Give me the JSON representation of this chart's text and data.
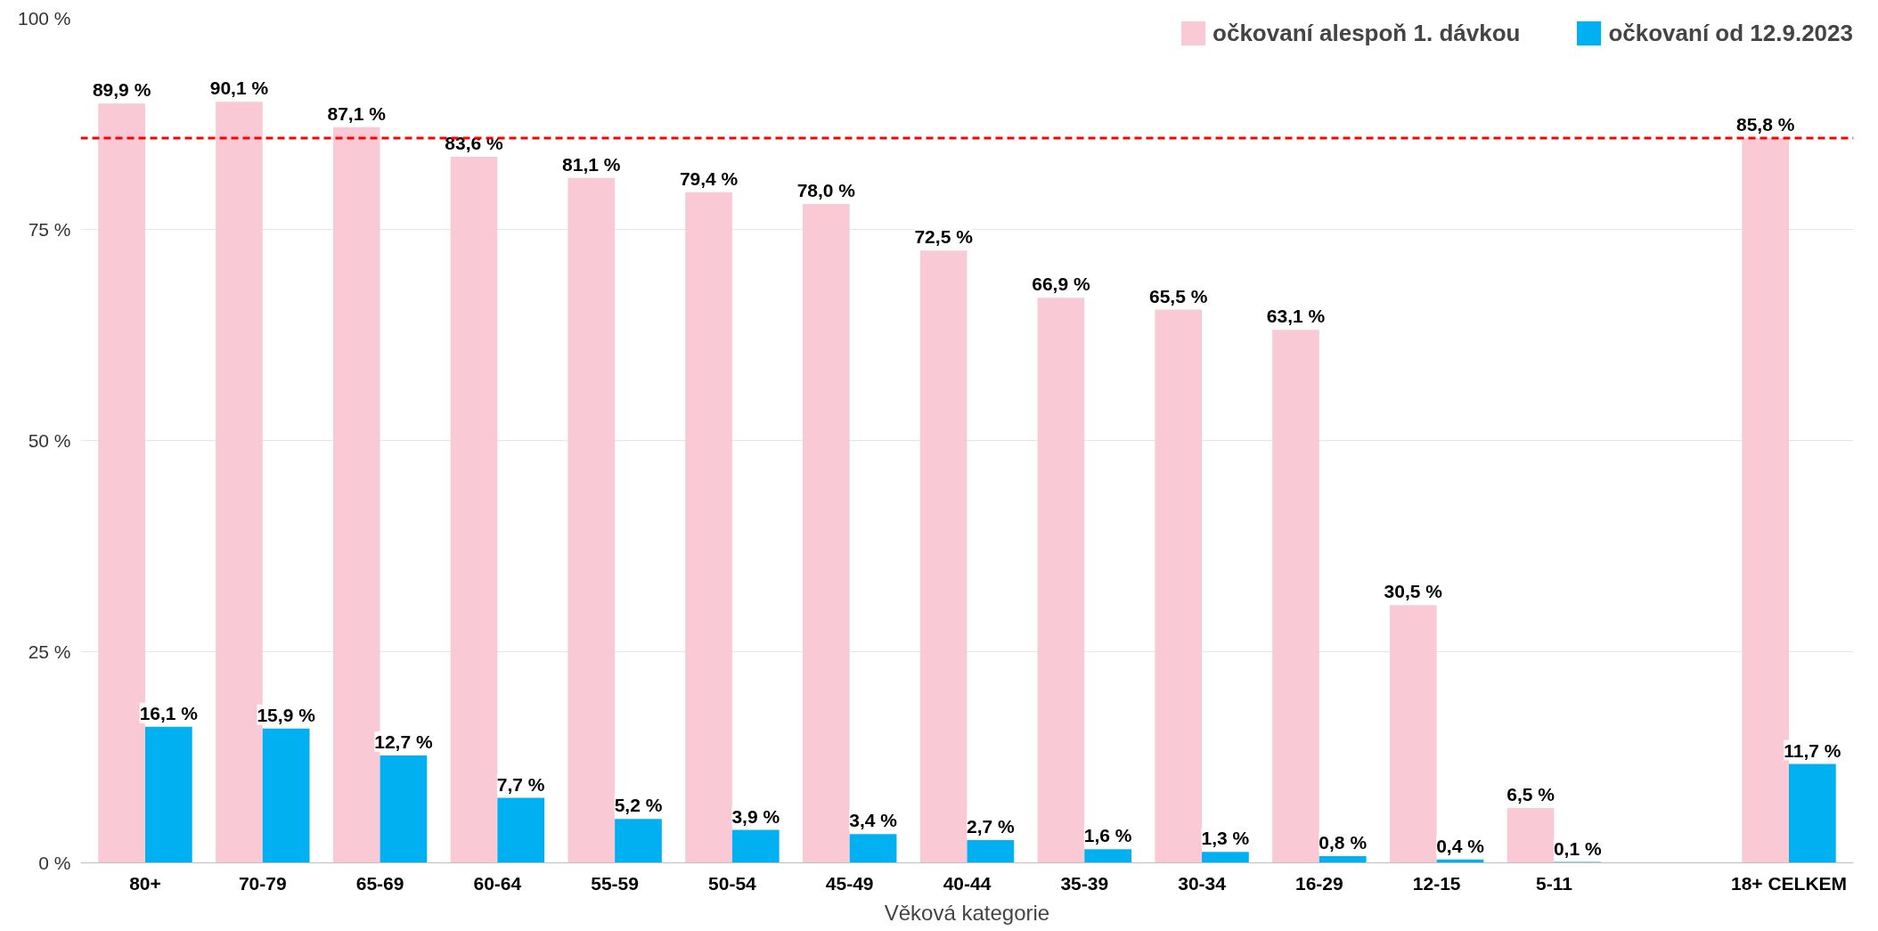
{
  "chart_data": {
    "type": "bar",
    "xlabel": "Věková kategorie",
    "categories": [
      "80+",
      "70-79",
      "65-69",
      "60-64",
      "55-59",
      "50-54",
      "45-49",
      "40-44",
      "35-39",
      "30-34",
      "16-29",
      "12-15",
      "5-11",
      null,
      "18+ CELKEM"
    ],
    "series": [
      {
        "name": "očkovaní alespoň 1. dávkou",
        "color": "#f9cad6",
        "values": [
          89.9,
          90.1,
          87.1,
          83.6,
          81.1,
          79.4,
          78.0,
          72.5,
          66.9,
          65.5,
          63.1,
          30.5,
          6.5,
          null,
          85.8
        ],
        "value_labels": [
          "89,9 %",
          "90,1 %",
          "87,1 %",
          "83,6 %",
          "81,1 %",
          "79,4 %",
          "78,0 %",
          "72,5 %",
          "66,9 %",
          "65,5 %",
          "63,1 %",
          "30,5 %",
          "6,5 %",
          null,
          "85,8 %"
        ]
      },
      {
        "name": "očkovaní od 12.9.2023",
        "color": "#00b0f0",
        "values": [
          16.1,
          15.9,
          12.7,
          7.7,
          5.2,
          3.9,
          3.4,
          2.7,
          1.6,
          1.3,
          0.8,
          0.4,
          0.1,
          null,
          11.7
        ],
        "value_labels": [
          "16,1 %",
          "15,9 %",
          "12,7 %",
          "7,7 %",
          "5,2 %",
          "3,9 %",
          "3,4 %",
          "2,7 %",
          "1,6 %",
          "1,3 %",
          "0,8 %",
          "0,4 %",
          "0,1 %",
          null,
          "11,7 %"
        ]
      }
    ],
    "ylim": [
      0,
      100
    ],
    "yticks": [
      {
        "value": 0,
        "label": "0 %"
      },
      {
        "value": 25,
        "label": "25 %"
      },
      {
        "value": 50,
        "label": "50 %"
      },
      {
        "value": 75,
        "label": "75 %"
      },
      {
        "value": 100,
        "label": "100 %"
      }
    ],
    "grid": "y",
    "legend": "top right",
    "ref_lines": [
      {
        "axis": "y",
        "value": 85.8,
        "color": "#ff0000",
        "line_style": "dashed"
      }
    ]
  }
}
